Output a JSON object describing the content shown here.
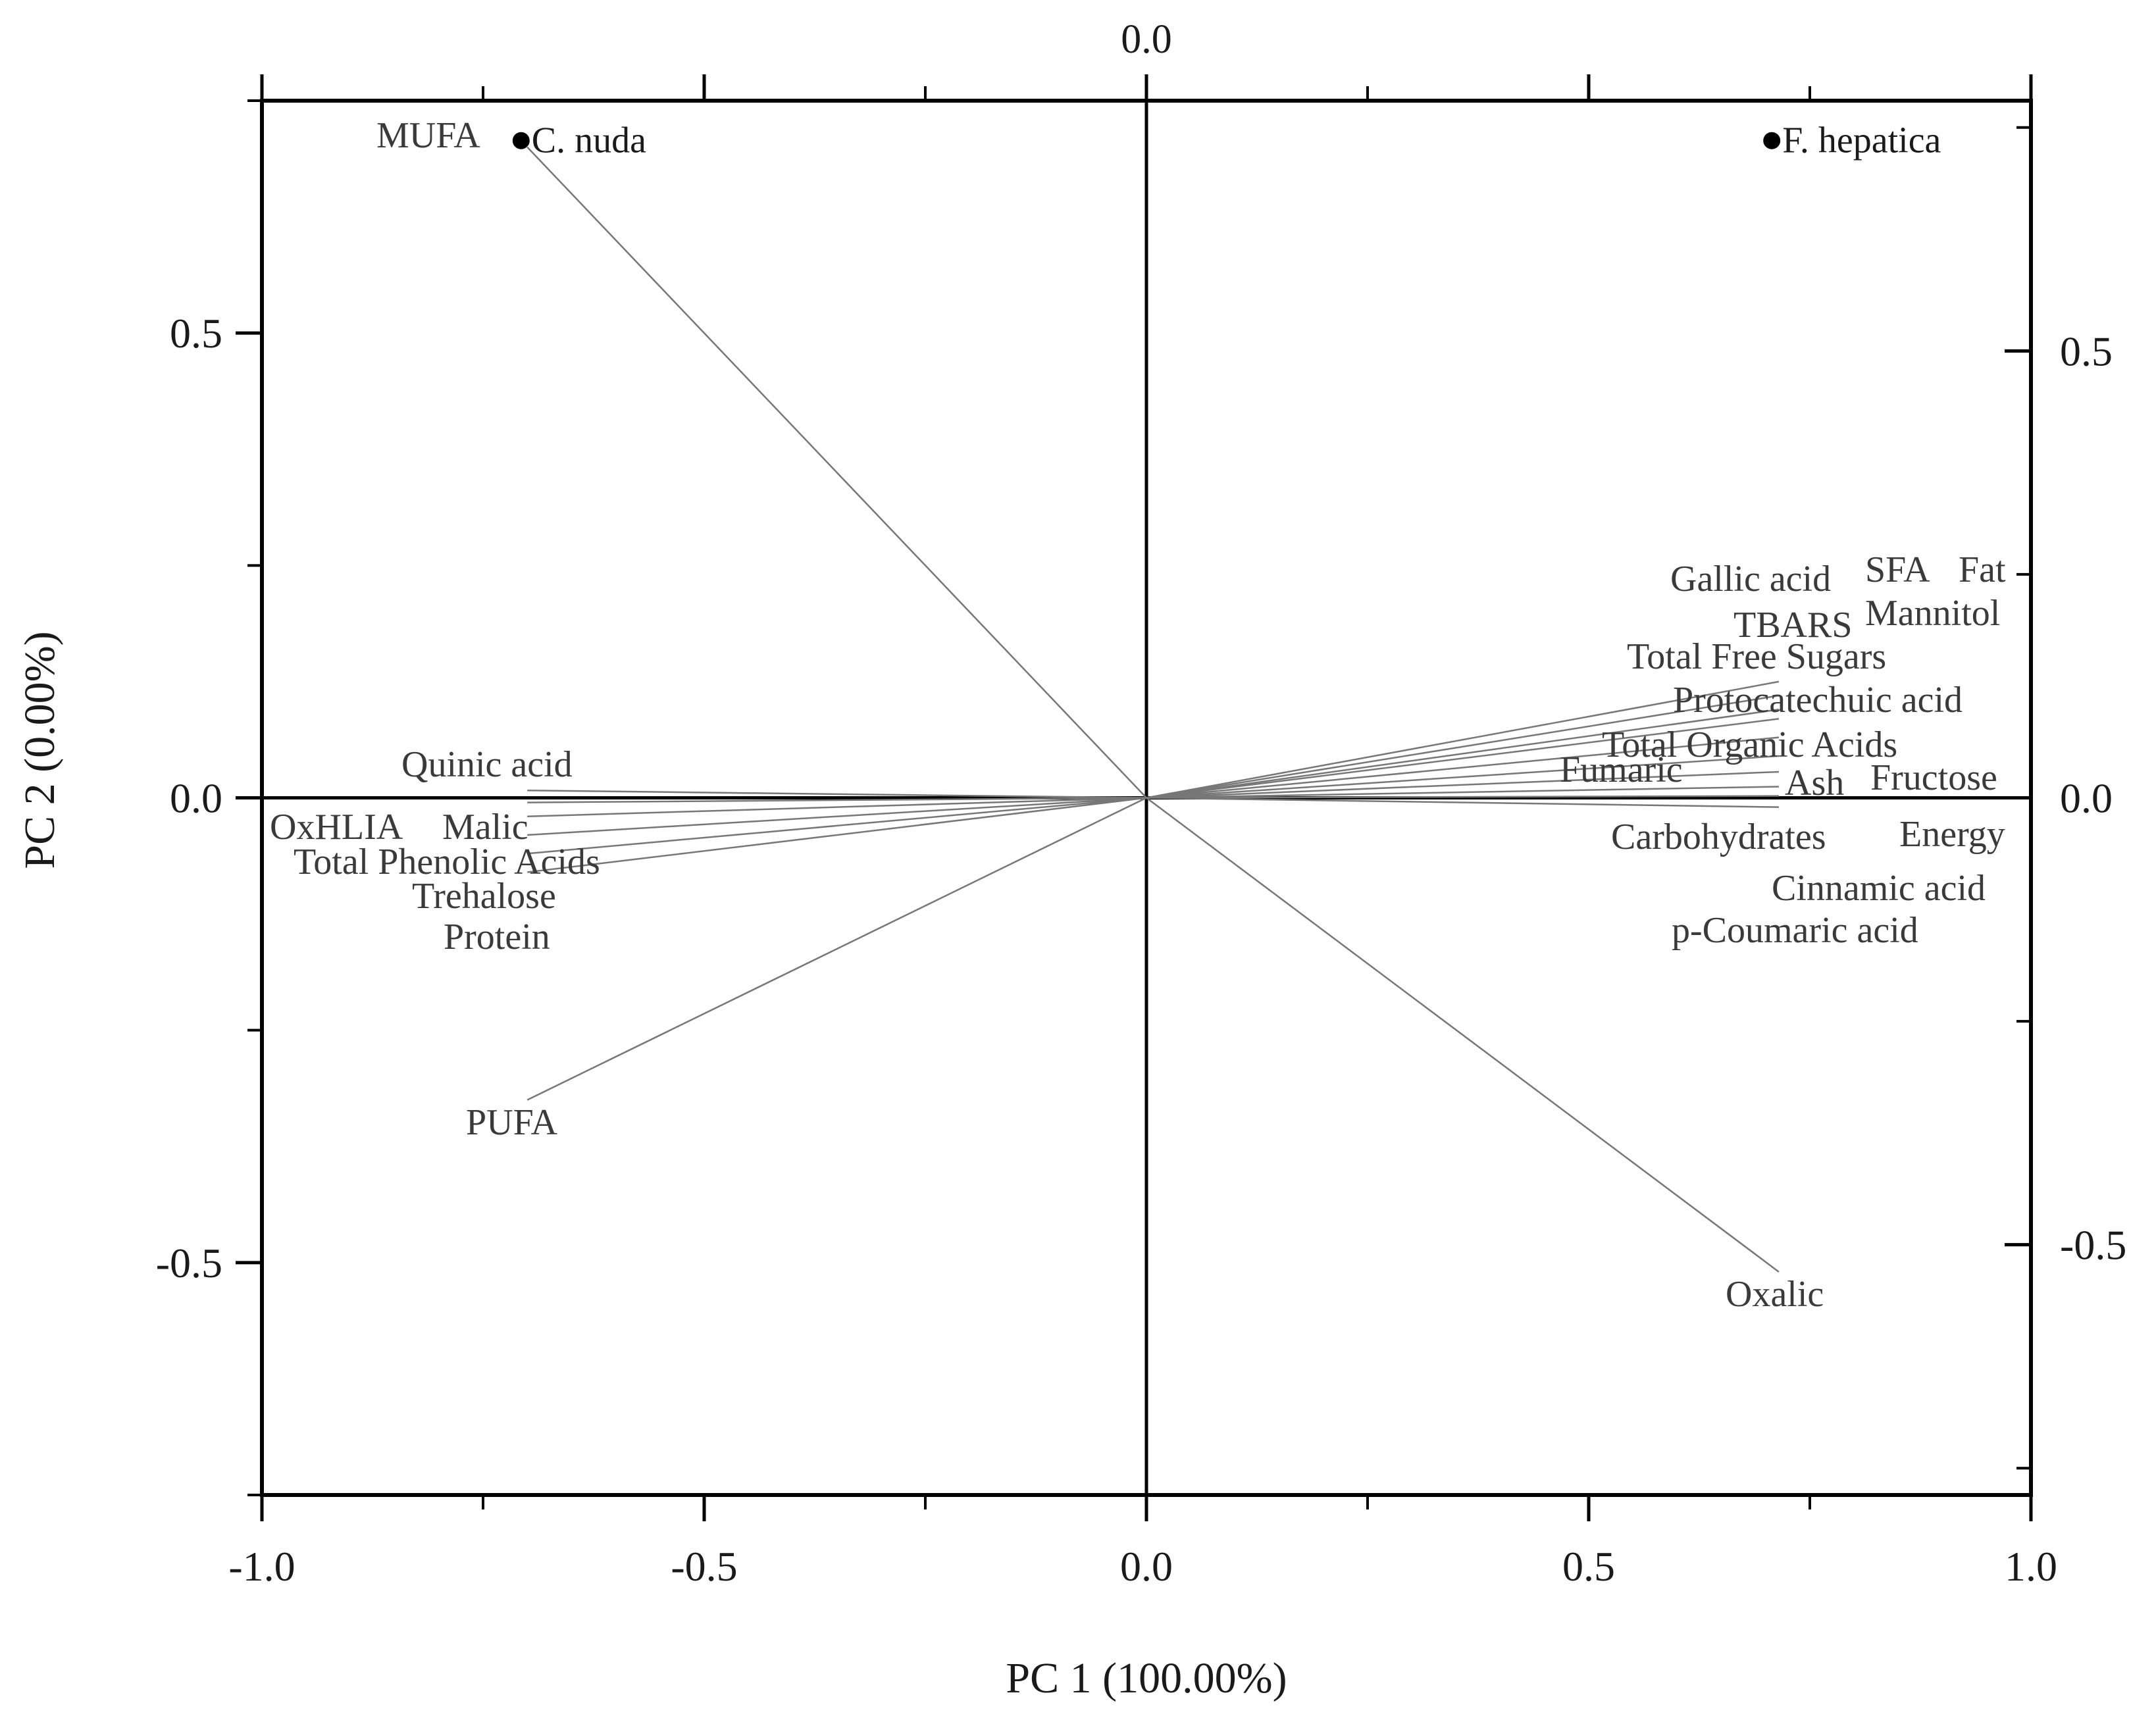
{
  "chart_data": {
    "type": "scatter",
    "subtype": "pca-biplot",
    "top_label": "0.0",
    "xlabel": "PC 1 (100.00%)",
    "ylabel": "PC 2 (0.00%)",
    "xlim": [
      -1.0,
      1.0
    ],
    "ylim": [
      -0.75,
      0.75
    ],
    "x_ticks": [
      -1.0,
      -0.5,
      0.0,
      0.5,
      1.0
    ],
    "x_tick_labels": [
      "-1.0",
      "-0.5",
      "0.0",
      "0.5",
      "1.0"
    ],
    "y_ticks_left": [
      -0.5,
      0.0,
      0.5
    ],
    "y_tick_labels_left": [
      "-0.5",
      "0.0",
      "0.5"
    ],
    "right_axis_ylim": [
      -0.78,
      0.78
    ],
    "y_ticks_right": [
      -0.5,
      0.0,
      0.5
    ],
    "y_tick_labels_right": [
      "-0.5",
      "0.0",
      "0.5"
    ],
    "grid": false,
    "samples": [
      {
        "label": "C. nuda",
        "x": -0.707,
        "y": 0.707
      },
      {
        "label": "F. hepatica",
        "x": 0.707,
        "y": 0.707
      }
    ],
    "loadings": [
      {
        "label": "MUFA",
        "x": -0.7,
        "y": 0.7,
        "drawn": true
      },
      {
        "label": "PUFA",
        "x": -0.7,
        "y": -0.325,
        "drawn": true
      },
      {
        "label": "Oxalic",
        "x": 0.715,
        "y": -0.51,
        "drawn": true
      },
      {
        "label": "Quinic acid",
        "x": -0.7,
        "y": 0.008,
        "drawn": true
      },
      {
        "label": "OxHLIA",
        "x": -0.7,
        "y": -0.005,
        "drawn": true
      },
      {
        "label": "Malic",
        "x": -0.7,
        "y": -0.02,
        "drawn": true
      },
      {
        "label": "Total Phenolic Acids",
        "x": -0.7,
        "y": -0.04,
        "drawn": true
      },
      {
        "label": "Trehalose",
        "x": -0.7,
        "y": -0.06,
        "drawn": true
      },
      {
        "label": "Protein",
        "x": -0.7,
        "y": -0.08,
        "drawn": true
      },
      {
        "label": "SFA",
        "x": 0.715,
        "y": 0.125,
        "drawn": true
      },
      {
        "label": "Fat",
        "x": 0.715,
        "y": 0.11,
        "drawn": true
      },
      {
        "label": "Gallic acid",
        "x": 0.715,
        "y": 0.095,
        "drawn": true
      },
      {
        "label": "Mannitol",
        "x": 0.715,
        "y": 0.085,
        "drawn": true
      },
      {
        "label": "TBARS",
        "x": 0.715,
        "y": 0.065,
        "drawn": true
      },
      {
        "label": "Total Free Sugars",
        "x": 0.715,
        "y": 0.045,
        "drawn": true
      },
      {
        "label": "Protocatechuic acid",
        "x": 0.715,
        "y": 0.028,
        "drawn": true
      },
      {
        "label": "Total Organic Acids",
        "x": 0.715,
        "y": 0.012,
        "drawn": true
      },
      {
        "label": "Fumaric",
        "x": 0.7,
        "y": 0.006,
        "drawn": false
      },
      {
        "label": "Ash",
        "x": 0.715,
        "y": 0.002,
        "drawn": true
      },
      {
        "label": "Fructose",
        "x": 0.715,
        "y": -0.002,
        "drawn": false
      },
      {
        "label": "Carbohydrates",
        "x": 0.715,
        "y": -0.01,
        "drawn": true
      },
      {
        "label": "Energy",
        "x": 0.715,
        "y": -0.005,
        "drawn": false
      },
      {
        "label": "Cinnamic acid",
        "x": 0.715,
        "y": 0.0,
        "drawn": false
      },
      {
        "label": "p-Coumaric acid",
        "x": 0.715,
        "y": 0.0,
        "drawn": false
      }
    ]
  }
}
